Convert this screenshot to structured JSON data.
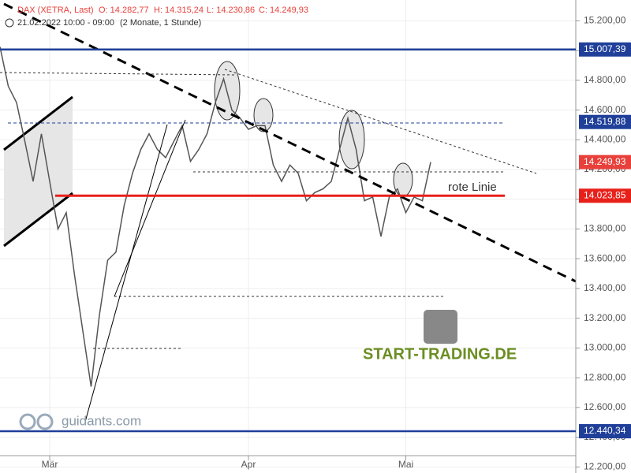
{
  "chart_data": {
    "type": "line",
    "header": {
      "instrument": "DAX (XETRA, Last)",
      "open": "O: 14.282,77",
      "high": "H: 14.315,24",
      "low": "L: 14.230,86",
      "close": "C: 14.249,93",
      "period": "21.02.2022 10:00 - 09:00",
      "interval": "(2 Monate, 1 Stunde)"
    },
    "annotation": "rote Linie",
    "watermarks": [
      "guidants.com",
      "START-TRADING.DE"
    ],
    "categories": [
      null,
      null,
      null,
      null,
      null,
      null,
      "Mär",
      null,
      null,
      null,
      null,
      null,
      null,
      null,
      null,
      null,
      null,
      null,
      null,
      null,
      null,
      null,
      null,
      null,
      null,
      null,
      null,
      null,
      null,
      null,
      "Apr",
      null,
      null,
      null,
      null,
      null,
      null,
      null,
      null,
      null,
      null,
      null,
      null,
      null,
      null,
      null,
      null,
      null,
      null,
      "Mai",
      null,
      null,
      null
    ],
    "series": [
      {
        "color": "#555555",
        "values": [
          15025,
          14760,
          14650,
          14390,
          14120,
          14440,
          14120,
          13800,
          13910,
          13490,
          13115,
          12740,
          13220,
          13590,
          13645,
          13960,
          14175,
          14335,
          14440,
          14335,
          14280,
          14390,
          14495,
          14255,
          14335,
          14440,
          14650,
          14810,
          14600,
          14545,
          14470,
          14495,
          14495,
          14230,
          14120,
          14230,
          14175,
          13990,
          14045,
          14070,
          14120,
          14335,
          14545,
          14335,
          13990,
          14015,
          13750,
          14015,
          14070,
          13910,
          14015,
          13990,
          14250
        ]
      }
    ],
    "ylim": [
      12170,
      15340
    ],
    "yticks": [
      {
        "value": 12200,
        "label": "12.200,00"
      },
      {
        "value": 12400,
        "label": "12.400,00"
      },
      {
        "value": 12600,
        "label": "12.600,00"
      },
      {
        "value": 12800,
        "label": "12.800,00"
      },
      {
        "value": 13000,
        "label": "13.000,00"
      },
      {
        "value": 13200,
        "label": "13.200,00"
      },
      {
        "value": 13400,
        "label": "13.400,00"
      },
      {
        "value": 13600,
        "label": "13.600,00"
      },
      {
        "value": 13800,
        "label": "13.800,00"
      },
      {
        "value": 14000,
        "label": "14.000,00"
      },
      {
        "value": 14200,
        "label": "14.200,00"
      },
      {
        "value": 14400,
        "label": "14.400,00"
      },
      {
        "value": 14600,
        "label": "14.600,00"
      },
      {
        "value": 14800,
        "label": "14.800,00"
      },
      {
        "value": 15000,
        "label": "15.000,00"
      },
      {
        "value": 15200,
        "label": "15.200,00"
      }
    ],
    "grid": true,
    "levels": [
      {
        "value": 15007.39,
        "label": "15.007,39",
        "color": "#1f3f99",
        "line": true
      },
      {
        "value": 14519.88,
        "label": "14.519,88",
        "color": "#1f3f99",
        "line": false
      },
      {
        "value": 14249.93,
        "label": "14.249,93",
        "color": "#e8403a",
        "line": false
      },
      {
        "value": 14023.85,
        "label": "14.023,85",
        "color": "#e8201a",
        "line": true
      },
      {
        "value": 12440.34,
        "label": "12.440,34",
        "color": "#1f3f99",
        "line": true
      }
    ]
  }
}
